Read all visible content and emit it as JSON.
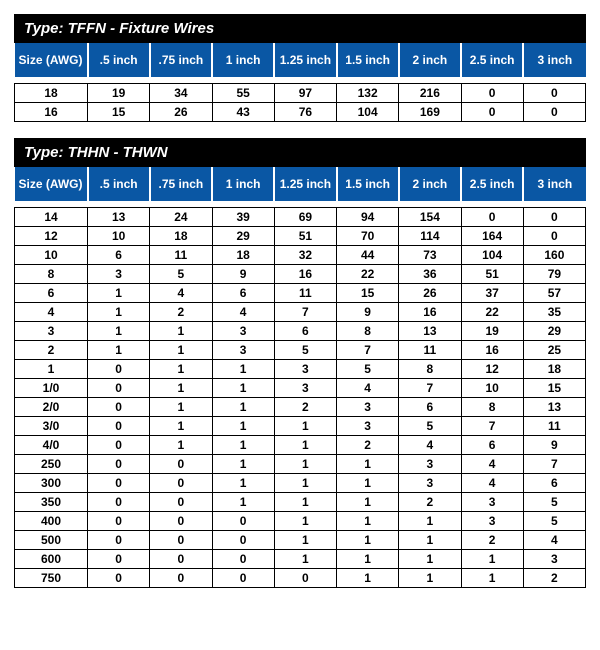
{
  "colors": {
    "header_bg": "#0a57a4",
    "header_fg": "#ffffff",
    "type_bar_bg": "#000000",
    "type_bar_fg": "#ffffff",
    "cell_border": "#000000",
    "page_bg": "#ffffff"
  },
  "columns": [
    "Size (AWG)",
    ".5 inch",
    ".75 inch",
    "1 inch",
    "1.25 inch",
    "1.5  inch",
    "2 inch",
    "2.5 inch",
    "3 inch"
  ],
  "tables": [
    {
      "title": "Type: TFFN - Fixture Wires",
      "rows": [
        [
          "18",
          "19",
          "34",
          "55",
          "97",
          "132",
          "216",
          "0",
          "0"
        ],
        [
          "16",
          "15",
          "26",
          "43",
          "76",
          "104",
          "169",
          "0",
          "0"
        ]
      ]
    },
    {
      "title": "Type: THHN - THWN",
      "rows": [
        [
          "14",
          "13",
          "24",
          "39",
          "69",
          "94",
          "154",
          "0",
          "0"
        ],
        [
          "12",
          "10",
          "18",
          "29",
          "51",
          "70",
          "114",
          "164",
          "0"
        ],
        [
          "10",
          "6",
          "11",
          "18",
          "32",
          "44",
          "73",
          "104",
          "160"
        ],
        [
          "8",
          "3",
          "5",
          "9",
          "16",
          "22",
          "36",
          "51",
          "79"
        ],
        [
          "6",
          "1",
          "4",
          "6",
          "11",
          "15",
          "26",
          "37",
          "57"
        ],
        [
          "4",
          "1",
          "2",
          "4",
          "7",
          "9",
          "16",
          "22",
          "35"
        ],
        [
          "3",
          "1",
          "1",
          "3",
          "6",
          "8",
          "13",
          "19",
          "29"
        ],
        [
          "2",
          "1",
          "1",
          "3",
          "5",
          "7",
          "11",
          "16",
          "25"
        ],
        [
          "1",
          "0",
          "1",
          "1",
          "3",
          "5",
          "8",
          "12",
          "18"
        ],
        [
          "1/0",
          "0",
          "1",
          "1",
          "3",
          "4",
          "7",
          "10",
          "15"
        ],
        [
          "2/0",
          "0",
          "1",
          "1",
          "2",
          "3",
          "6",
          "8",
          "13"
        ],
        [
          "3/0",
          "0",
          "1",
          "1",
          "1",
          "3",
          "5",
          "7",
          "11"
        ],
        [
          "4/0",
          "0",
          "1",
          "1",
          "1",
          "2",
          "4",
          "6",
          "9"
        ],
        [
          "250",
          "0",
          "0",
          "1",
          "1",
          "1",
          "3",
          "4",
          "7"
        ],
        [
          "300",
          "0",
          "0",
          "1",
          "1",
          "1",
          "3",
          "4",
          "6"
        ],
        [
          "350",
          "0",
          "0",
          "1",
          "1",
          "1",
          "2",
          "3",
          "5"
        ],
        [
          "400",
          "0",
          "0",
          "0",
          "1",
          "1",
          "1",
          "3",
          "5"
        ],
        [
          "500",
          "0",
          "0",
          "0",
          "1",
          "1",
          "1",
          "2",
          "4"
        ],
        [
          "600",
          "0",
          "0",
          "0",
          "1",
          "1",
          "1",
          "1",
          "3"
        ],
        [
          "750",
          "0",
          "0",
          "0",
          "0",
          "1",
          "1",
          "1",
          "2"
        ]
      ]
    }
  ]
}
